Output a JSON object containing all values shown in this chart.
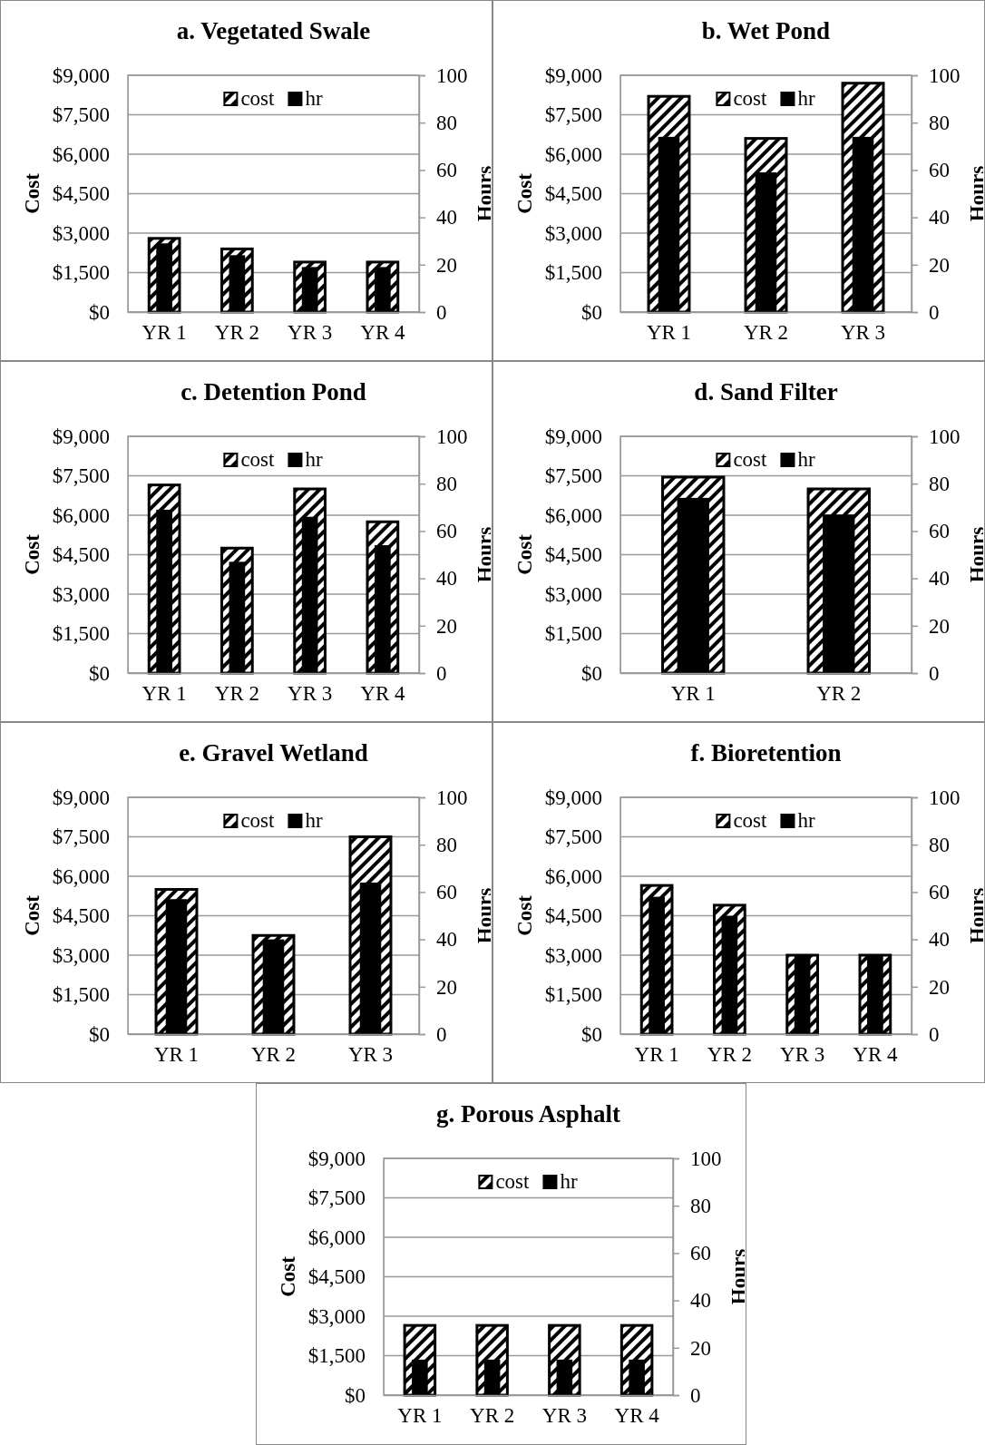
{
  "chart_data": [
    {
      "type": "bar",
      "title": "a. Vegetated Swale",
      "ylabel": "Cost",
      "y2label": "Hours",
      "categories": [
        "YR 1",
        "YR 2",
        "YR 3",
        "YR 4"
      ],
      "series": [
        {
          "name": "cost",
          "color": "#000000",
          "values": [
            2800,
            2400,
            1900,
            1900
          ]
        },
        {
          "name": "hr",
          "color": "#000000",
          "axis": "y2",
          "values": [
            29,
            24,
            19,
            19
          ]
        }
      ],
      "ylim": [
        0,
        9000
      ],
      "yticks": [
        {
          "value": 0,
          "label": "$0"
        },
        {
          "value": 1500,
          "label": "$1,500"
        },
        {
          "value": 3000,
          "label": "$3,000"
        },
        {
          "value": 4500,
          "label": "$4,500"
        },
        {
          "value": 6000,
          "label": "$6,000"
        },
        {
          "value": 7500,
          "label": "$7,500"
        },
        {
          "value": 9000,
          "label": "$9,000"
        }
      ],
      "y2lim": [
        0,
        100
      ],
      "y2ticks": [
        0,
        20,
        40,
        60,
        80,
        100
      ],
      "grid": "y",
      "legend": "top"
    },
    {
      "type": "bar",
      "title": "b. Wet Pond",
      "ylabel": "Cost",
      "y2label": "Hours",
      "categories": [
        "YR 1",
        "YR 2",
        "YR 3"
      ],
      "series": [
        {
          "name": "cost",
          "color": "#000000",
          "values": [
            8200,
            6600,
            8700
          ]
        },
        {
          "name": "hr",
          "color": "#000000",
          "axis": "y2",
          "values": [
            74,
            59,
            74
          ]
        }
      ],
      "ylim": [
        0,
        9000
      ],
      "yticks": [
        {
          "value": 0,
          "label": "$0"
        },
        {
          "value": 1500,
          "label": "$1,500"
        },
        {
          "value": 3000,
          "label": "$3,000"
        },
        {
          "value": 4500,
          "label": "$4,500"
        },
        {
          "value": 6000,
          "label": "$6,000"
        },
        {
          "value": 7500,
          "label": "$7,500"
        },
        {
          "value": 9000,
          "label": "$9,000"
        }
      ],
      "y2lim": [
        0,
        100
      ],
      "y2ticks": [
        0,
        20,
        40,
        60,
        80,
        100
      ],
      "grid": "y",
      "legend": "top"
    },
    {
      "type": "bar",
      "title": "c. Detention Pond",
      "ylabel": "Cost",
      "y2label": "Hours",
      "categories": [
        "YR 1",
        "YR 2",
        "YR 3",
        "YR 4"
      ],
      "series": [
        {
          "name": "cost",
          "color": "#000000",
          "values": [
            7150,
            4750,
            7000,
            5750
          ]
        },
        {
          "name": "hr",
          "color": "#000000",
          "axis": "y2",
          "values": [
            69,
            47,
            66,
            54
          ]
        }
      ],
      "ylim": [
        0,
        9000
      ],
      "yticks": [
        {
          "value": 0,
          "label": "$0"
        },
        {
          "value": 1500,
          "label": "$1,500"
        },
        {
          "value": 3000,
          "label": "$3,000"
        },
        {
          "value": 4500,
          "label": "$4,500"
        },
        {
          "value": 6000,
          "label": "$6,000"
        },
        {
          "value": 7500,
          "label": "$7,500"
        },
        {
          "value": 9000,
          "label": "$9,000"
        }
      ],
      "y2lim": [
        0,
        100
      ],
      "y2ticks": [
        0,
        20,
        40,
        60,
        80,
        100
      ],
      "grid": "y",
      "legend": "top"
    },
    {
      "type": "bar",
      "title": "d. Sand Filter",
      "ylabel": "Cost",
      "y2label": "Hours",
      "categories": [
        "YR 1",
        "YR 2"
      ],
      "series": [
        {
          "name": "cost",
          "color": "#000000",
          "values": [
            7450,
            7000
          ]
        },
        {
          "name": "hr",
          "color": "#000000",
          "axis": "y2",
          "values": [
            74,
            67
          ]
        }
      ],
      "ylim": [
        0,
        9000
      ],
      "yticks": [
        {
          "value": 0,
          "label": "$0"
        },
        {
          "value": 1500,
          "label": "$1,500"
        },
        {
          "value": 3000,
          "label": "$3,000"
        },
        {
          "value": 4500,
          "label": "$4,500"
        },
        {
          "value": 6000,
          "label": "$6,000"
        },
        {
          "value": 7500,
          "label": "$7,500"
        },
        {
          "value": 9000,
          "label": "$9,000"
        }
      ],
      "y2lim": [
        0,
        100
      ],
      "y2ticks": [
        0,
        20,
        40,
        60,
        80,
        100
      ],
      "grid": "y",
      "legend": "top"
    },
    {
      "type": "bar",
      "title": "e. Gravel Wetland",
      "ylabel": "Cost",
      "y2label": "Hours",
      "categories": [
        "YR 1",
        "YR 2",
        "YR 3"
      ],
      "series": [
        {
          "name": "cost",
          "color": "#000000",
          "values": [
            5500,
            3750,
            7500
          ]
        },
        {
          "name": "hr",
          "color": "#000000",
          "axis": "y2",
          "values": [
            57,
            40,
            64
          ]
        }
      ],
      "ylim": [
        0,
        9000
      ],
      "yticks": [
        {
          "value": 0,
          "label": "$0"
        },
        {
          "value": 1500,
          "label": "$1,500"
        },
        {
          "value": 3000,
          "label": "$3,000"
        },
        {
          "value": 4500,
          "label": "$4,500"
        },
        {
          "value": 6000,
          "label": "$6,000"
        },
        {
          "value": 7500,
          "label": "$7,500"
        },
        {
          "value": 9000,
          "label": "$9,000"
        }
      ],
      "y2lim": [
        0,
        100
      ],
      "y2ticks": [
        0,
        20,
        40,
        60,
        80,
        100
      ],
      "grid": "y",
      "legend": "top"
    },
    {
      "type": "bar",
      "title": "f. Bioretention",
      "ylabel": "Cost",
      "y2label": "Hours",
      "categories": [
        "YR 1",
        "YR 2",
        "YR 3",
        "YR 4"
      ],
      "series": [
        {
          "name": "cost",
          "color": "#000000",
          "values": [
            5650,
            4900,
            3000,
            3000
          ]
        },
        {
          "name": "hr",
          "color": "#000000",
          "axis": "y2",
          "values": [
            58,
            50,
            33,
            33
          ]
        }
      ],
      "ylim": [
        0,
        9000
      ],
      "yticks": [
        {
          "value": 0,
          "label": "$0"
        },
        {
          "value": 1500,
          "label": "$1,500"
        },
        {
          "value": 3000,
          "label": "$3,000"
        },
        {
          "value": 4500,
          "label": "$4,500"
        },
        {
          "value": 6000,
          "label": "$6,000"
        },
        {
          "value": 7500,
          "label": "$7,500"
        },
        {
          "value": 9000,
          "label": "$9,000"
        }
      ],
      "y2lim": [
        0,
        100
      ],
      "y2ticks": [
        0,
        20,
        40,
        60,
        80,
        100
      ],
      "grid": "y",
      "legend": "top"
    },
    {
      "type": "bar",
      "title": "g. Porous Asphalt",
      "ylabel": "Cost",
      "y2label": "Hours",
      "categories": [
        "YR 1",
        "YR 2",
        "YR 3",
        "YR 4"
      ],
      "series": [
        {
          "name": "cost",
          "color": "#000000",
          "values": [
            2650,
            2650,
            2650,
            2650
          ]
        },
        {
          "name": "hr",
          "color": "#000000",
          "axis": "y2",
          "values": [
            15,
            15,
            15,
            15
          ]
        }
      ],
      "ylim": [
        0,
        9000
      ],
      "yticks": [
        {
          "value": 0,
          "label": "$0"
        },
        {
          "value": 1500,
          "label": "$1,500"
        },
        {
          "value": 3000,
          "label": "$3,000"
        },
        {
          "value": 4500,
          "label": "$4,500"
        },
        {
          "value": 6000,
          "label": "$6,000"
        },
        {
          "value": 7500,
          "label": "$7,500"
        },
        {
          "value": 9000,
          "label": "$9,000"
        }
      ],
      "y2lim": [
        0,
        100
      ],
      "y2ticks": [
        0,
        20,
        40,
        60,
        80,
        100
      ],
      "grid": "y",
      "legend": "top"
    }
  ]
}
